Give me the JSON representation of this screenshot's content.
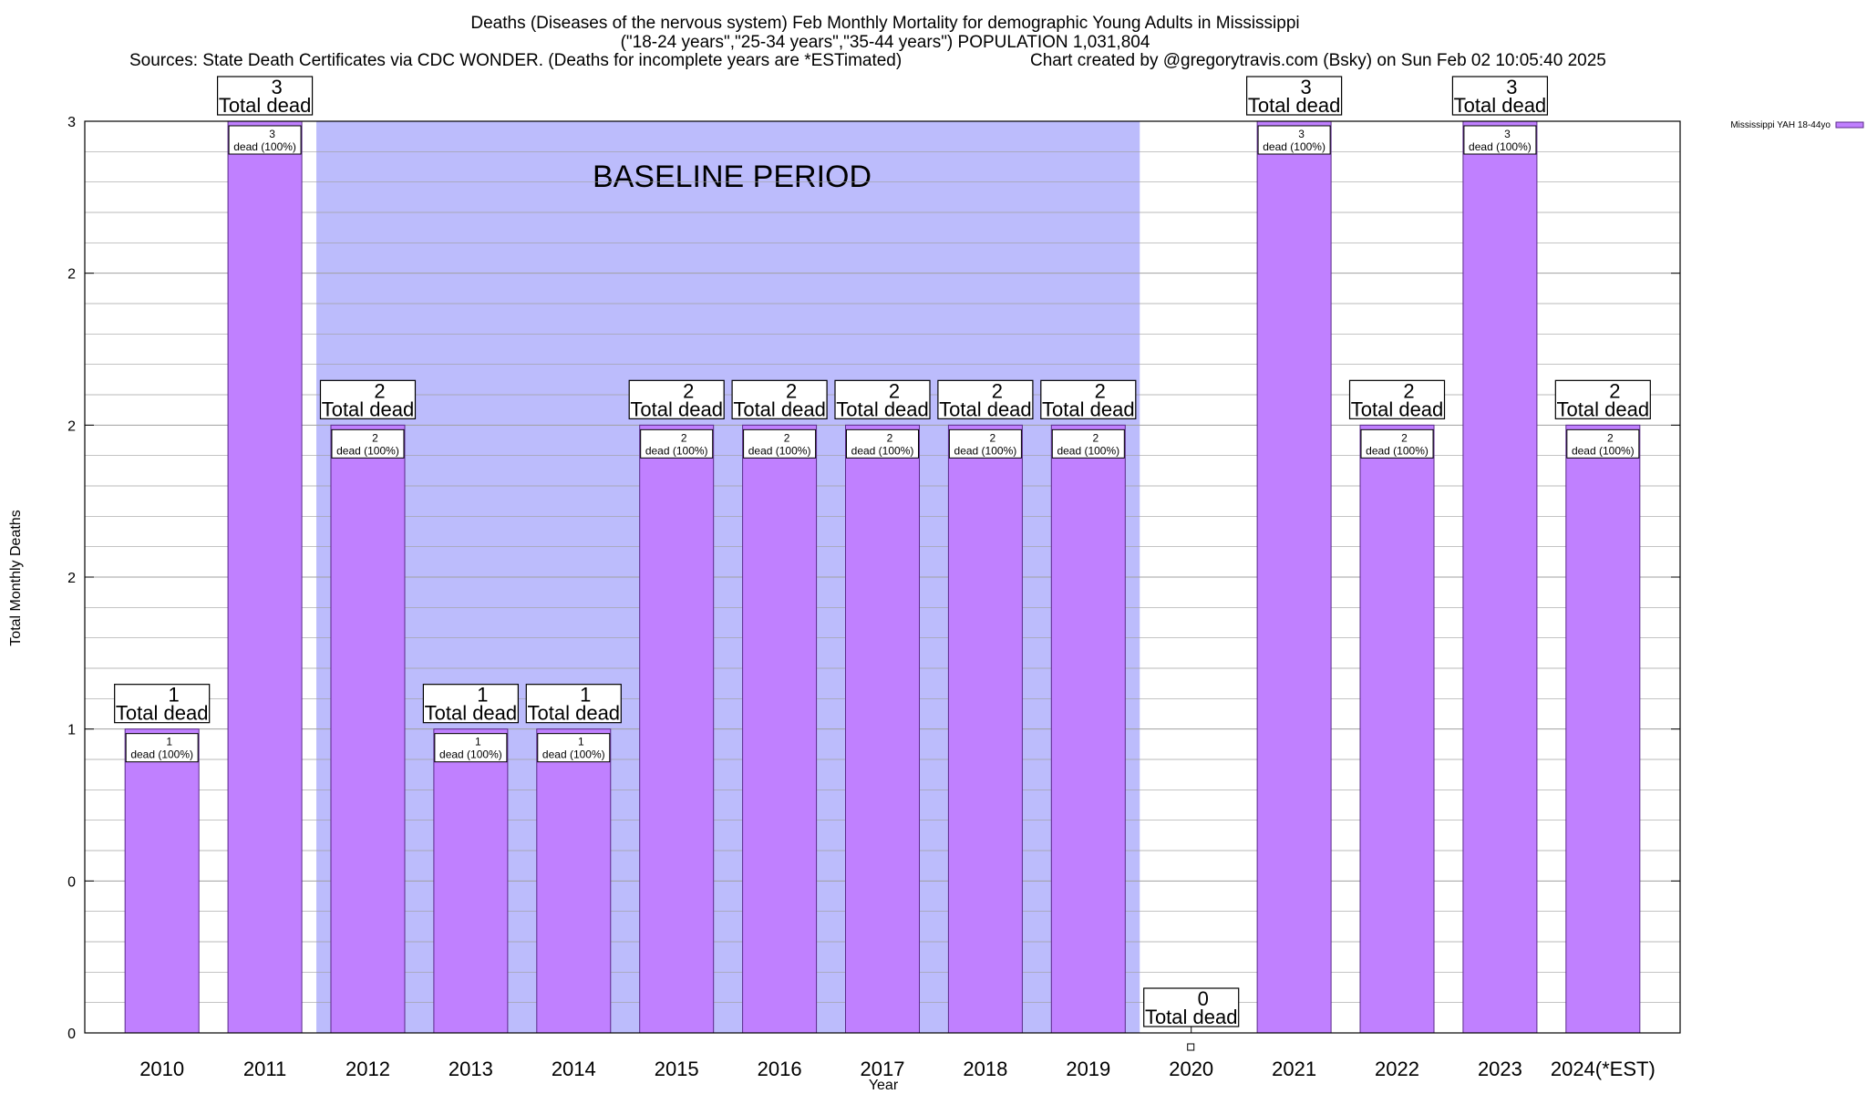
{
  "titles": {
    "line1": "Deaths (Diseases of the nervous system) Feb Monthly Mortality for demographic Young Adults in Mississippi",
    "line2": "(\"18-24 years\",\"25-34 years\",\"35-44 years\") POPULATION 1,031,804",
    "line3_left": "Sources: State Death Certificates via CDC WONDER. (Deaths for incomplete years are *ESTimated)",
    "line3_right": "Chart created by @gregorytravis.com (Bsky) on Sun Feb 02 10:05:40 2025"
  },
  "baseline_label": "BASELINE PERIOD",
  "total_dead_text": "Total dead",
  "colors": {
    "bar_fill": "#c080ff",
    "bar_stroke": "#5a2a8a",
    "baseline_fill": "#bcbcfc",
    "grid": "#a0a0a0"
  },
  "chart_data": {
    "type": "bar",
    "title": "Deaths (Diseases of the nervous system) Feb Monthly Mortality for demographic Young Adults in Mississippi",
    "xlabel": "Year",
    "ylabel": "Total Monthly Deaths",
    "ylim": [
      0,
      3
    ],
    "y_tick_values": [
      0,
      0.5,
      1,
      1.5,
      2,
      2.5,
      3
    ],
    "y_tick_labels": [
      "0",
      "0",
      "1",
      "2",
      "2",
      "2",
      "3"
    ],
    "grid": true,
    "legend_position": "top-right",
    "categories": [
      "2010",
      "2011",
      "2012",
      "2013",
      "2014",
      "2015",
      "2016",
      "2017",
      "2018",
      "2019",
      "2020",
      "2021",
      "2022",
      "2023",
      "2024(*EST)"
    ],
    "series": [
      {
        "name": "Mississippi YAH 18-44yo",
        "values": [
          1,
          3,
          2,
          1,
          1,
          2,
          2,
          2,
          2,
          2,
          0,
          3,
          2,
          3,
          2
        ],
        "inner_labels": [
          "dead (100%)",
          "dead (100%)",
          "dead (100%)",
          "dead (100%)",
          "dead (100%)",
          "dead (100%)",
          "dead (100%)",
          "dead (100%)",
          "dead (100%)",
          "dead (100%)",
          "",
          "dead (100%)",
          "dead (100%)",
          "dead (100%)",
          "dead (100%)"
        ]
      }
    ],
    "baseline_period": [
      "2012",
      "2019"
    ]
  }
}
